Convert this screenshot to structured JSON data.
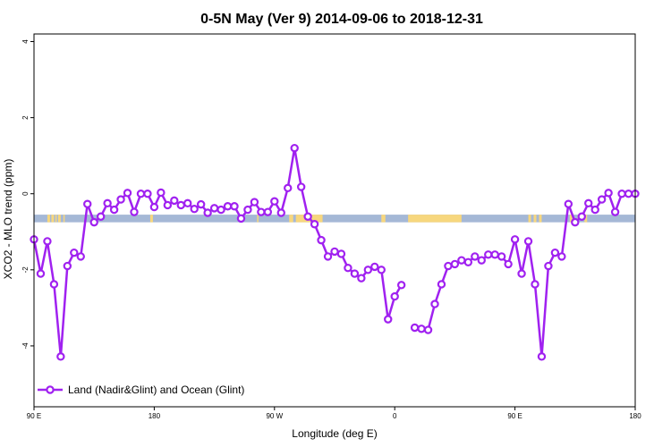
{
  "chart_data": {
    "type": "line",
    "title": "0-5N May (Ver 9)   2014-09-06 to 2018-12-31",
    "xlabel": "Longitude (deg E)",
    "ylabel": "XCO2 - MLO trend (ppm)",
    "x_ticks": [
      {
        "value": 90,
        "label": "90 E"
      },
      {
        "value": 180,
        "label": "180"
      },
      {
        "value": 270,
        "label": "90 W"
      },
      {
        "value": 360,
        "label": "0"
      },
      {
        "value": 450,
        "label": "90 E"
      },
      {
        "value": 540,
        "label": "180"
      }
    ],
    "y_ticks": [
      {
        "value": -4,
        "label": "-4"
      },
      {
        "value": -2,
        "label": "-2"
      },
      {
        "value": 0,
        "label": "0"
      },
      {
        "value": 2,
        "label": "2"
      },
      {
        "value": 4,
        "label": "4"
      }
    ],
    "xlim": [
      90,
      540
    ],
    "ylim": [
      -5.6,
      4.2
    ],
    "grid": false,
    "legend_position": "bottom-left",
    "background_band": {
      "y_range": [
        -0.75,
        -0.55
      ],
      "ocean_color": "#a5b8d6",
      "land_color": "#f7d77e",
      "land_segments": [
        [
          100,
          102
        ],
        [
          103,
          105
        ],
        [
          106,
          107
        ],
        [
          108,
          110
        ],
        [
          112,
          113
        ],
        [
          177,
          179
        ],
        [
          257,
          258
        ],
        [
          281,
          284
        ],
        [
          286,
          306
        ],
        [
          350,
          353
        ],
        [
          370,
          410
        ],
        [
          460,
          462
        ],
        [
          464,
          466
        ],
        [
          468,
          470
        ],
        [
          491,
          493
        ],
        [
          497,
          498
        ],
        [
          502,
          504
        ]
      ]
    },
    "series": [
      {
        "name": "Land (Nadir&Glint) and Ocean (Glint)",
        "color": "#a021f0",
        "segments": [
          [
            [
              90,
              -1.2
            ],
            [
              95,
              -2.1
            ],
            [
              100,
              -1.25
            ],
            [
              105,
              -2.38
            ],
            [
              110,
              -4.28
            ],
            [
              115,
              -1.9
            ],
            [
              120,
              -1.55
            ],
            [
              125,
              -1.65
            ],
            [
              130,
              -0.27
            ],
            [
              135,
              -0.75
            ],
            [
              140,
              -0.6
            ],
            [
              145,
              -0.25
            ],
            [
              150,
              -0.42
            ],
            [
              155,
              -0.15
            ],
            [
              160,
              0.02
            ],
            [
              165,
              -0.48
            ],
            [
              170,
              0.0
            ],
            [
              175,
              0.0
            ],
            [
              180,
              -0.35
            ],
            [
              185,
              0.03
            ],
            [
              190,
              -0.3
            ],
            [
              195,
              -0.18
            ],
            [
              200,
              -0.3
            ],
            [
              205,
              -0.25
            ],
            [
              210,
              -0.4
            ],
            [
              215,
              -0.28
            ],
            [
              220,
              -0.5
            ],
            [
              225,
              -0.38
            ],
            [
              230,
              -0.42
            ],
            [
              235,
              -0.33
            ],
            [
              240,
              -0.33
            ],
            [
              245,
              -0.65
            ],
            [
              250,
              -0.42
            ],
            [
              255,
              -0.22
            ],
            [
              260,
              -0.48
            ],
            [
              265,
              -0.48
            ],
            [
              270,
              -0.2
            ],
            [
              275,
              -0.5
            ],
            [
              280,
              0.15
            ],
            [
              285,
              1.2
            ],
            [
              290,
              0.18
            ],
            [
              295,
              -0.6
            ],
            [
              300,
              -0.8
            ],
            [
              305,
              -1.22
            ],
            [
              310,
              -1.65
            ],
            [
              315,
              -1.52
            ],
            [
              320,
              -1.58
            ],
            [
              325,
              -1.95
            ],
            [
              330,
              -2.1
            ],
            [
              335,
              -2.22
            ],
            [
              340,
              -2.0
            ],
            [
              345,
              -1.92
            ],
            [
              350,
              -2.0
            ],
            [
              355,
              -3.3
            ],
            [
              360,
              -2.7
            ],
            [
              365,
              -2.4
            ]
          ],
          [
            [
              375,
              -3.52
            ],
            [
              380,
              -3.55
            ],
            [
              385,
              -3.58
            ],
            [
              390,
              -2.9
            ],
            [
              395,
              -2.38
            ],
            [
              400,
              -1.9
            ],
            [
              405,
              -1.85
            ],
            [
              410,
              -1.75
            ],
            [
              415,
              -1.8
            ],
            [
              420,
              -1.65
            ],
            [
              425,
              -1.75
            ],
            [
              430,
              -1.6
            ],
            [
              435,
              -1.6
            ],
            [
              440,
              -1.65
            ],
            [
              445,
              -1.85
            ],
            [
              450,
              -1.2
            ],
            [
              455,
              -2.1
            ],
            [
              460,
              -1.25
            ],
            [
              465,
              -2.38
            ],
            [
              470,
              -4.28
            ],
            [
              475,
              -1.9
            ],
            [
              480,
              -1.55
            ],
            [
              485,
              -1.65
            ],
            [
              490,
              -0.27
            ],
            [
              495,
              -0.75
            ],
            [
              500,
              -0.6
            ],
            [
              505,
              -0.25
            ],
            [
              510,
              -0.42
            ],
            [
              515,
              -0.15
            ],
            [
              520,
              0.02
            ],
            [
              525,
              -0.48
            ],
            [
              530,
              0.0
            ],
            [
              535,
              0.0
            ],
            [
              540,
              0.0
            ]
          ]
        ]
      }
    ]
  }
}
